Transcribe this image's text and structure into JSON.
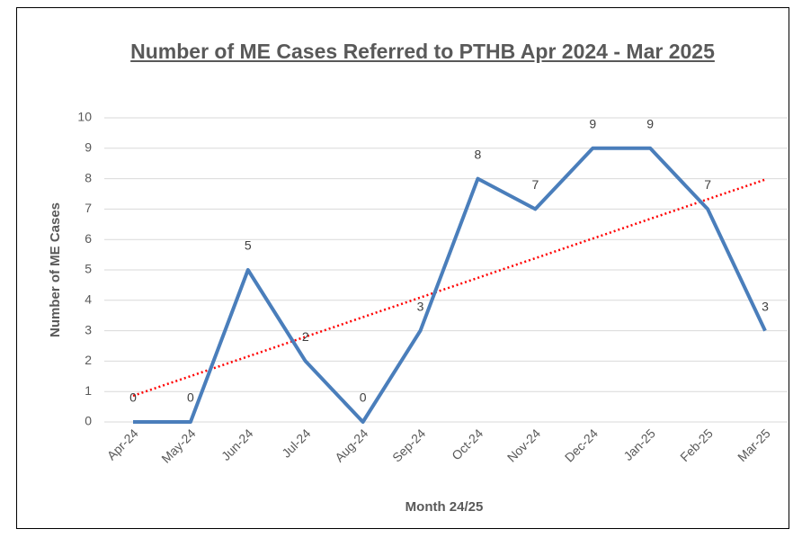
{
  "chart_data": {
    "type": "line",
    "title": "Number of ME Cases Referred to PTHB Apr 2024 - Mar 2025",
    "x_label": "Month 24/25",
    "y_label": "Number of ME Cases",
    "categories": [
      "Apr-24",
      "May-24",
      "Jun-24",
      "Jul-24",
      "Aug-24",
      "Sep-24",
      "Oct-24",
      "Nov-24",
      "Dec-24",
      "Jan-25",
      "Feb-25",
      "Mar-25"
    ],
    "values": [
      0,
      0,
      5,
      2,
      0,
      3,
      8,
      7,
      9,
      9,
      7,
      3
    ],
    "color": "#4a7ebb",
    "trendline": {
      "color": "#ff0000",
      "values": [
        0.86,
        7.97
      ]
    },
    "ylim": [
      0,
      10
    ],
    "yticks": [
      0,
      1,
      2,
      3,
      4,
      5,
      6,
      7,
      8,
      9,
      10
    ],
    "grid": true
  }
}
